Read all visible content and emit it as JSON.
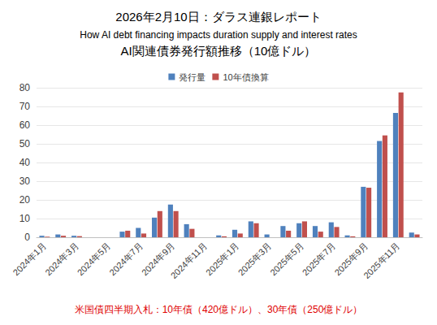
{
  "chart_data": {
    "type": "bar",
    "header": "2026年2月10日：ダラス連銀レポート",
    "subtitle": "How AI debt financing impacts duration supply and interest rates",
    "title": "AI関連債券発行額推移（10億ドル）",
    "annotations": [
      "米国債四半期入札：10年債（420億ドル）、30年債（250億ドル）"
    ],
    "categories": [
      "2024年1月",
      null,
      "2024年3月",
      null,
      "2024年5月",
      null,
      "2024年7月",
      null,
      "2024年9月",
      null,
      "2024年11月",
      null,
      "2025年1月",
      null,
      "2025年3月",
      null,
      "2025年5月",
      null,
      "2025年7月",
      null,
      "2025年9月",
      null,
      "2025年11月",
      null
    ],
    "series": [
      {
        "name": "発行量",
        "color": "#4f81bd",
        "values": [
          0.8,
          1.5,
          0.8,
          0,
          0,
          3,
          5,
          10.5,
          17.5,
          7,
          0,
          1,
          4,
          8.5,
          1.5,
          6,
          7.5,
          6,
          8,
          1,
          27,
          51.5,
          66.5,
          2.5
        ]
      },
      {
        "name": "10年債換算",
        "color": "#c0504d",
        "values": [
          0.3,
          0.8,
          0.6,
          0,
          0,
          3.5,
          2,
          14,
          14,
          4.5,
          0,
          0.5,
          2,
          7.5,
          0,
          3.5,
          8.5,
          3,
          5.5,
          0.5,
          26.5,
          54.5,
          77.5,
          1.5
        ]
      }
    ],
    "ylim": [
      0,
      80
    ],
    "yticks": [
      0,
      10,
      20,
      30,
      40,
      50,
      60,
      70,
      80
    ],
    "grid": true,
    "legend": "top"
  }
}
